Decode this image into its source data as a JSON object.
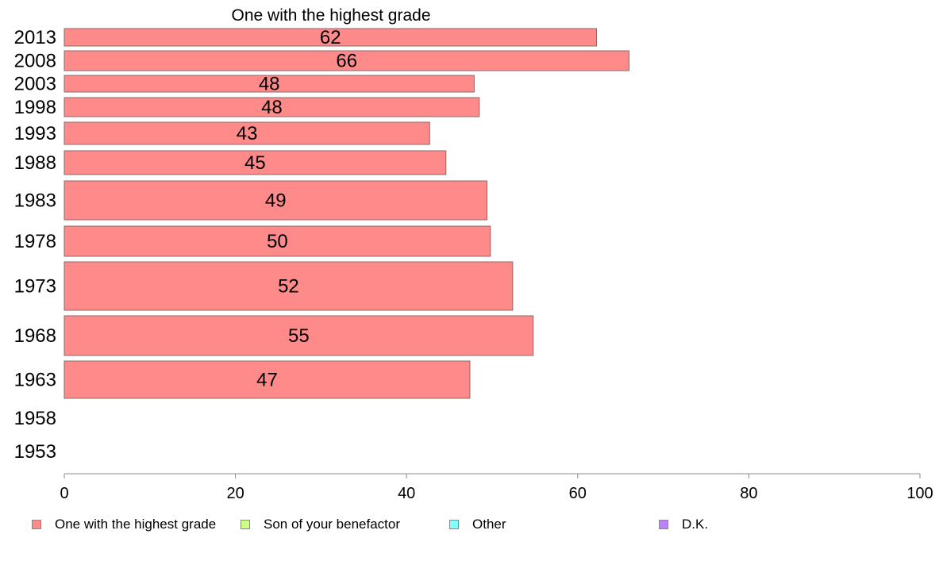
{
  "chart_data": {
    "type": "bar",
    "orientation": "horizontal",
    "title": "One with the highest grade",
    "categories": [
      "2013",
      "2008",
      "2003",
      "1998",
      "1993",
      "1988",
      "1983",
      "1978",
      "1973",
      "1968",
      "1963",
      "1958",
      "1953"
    ],
    "series": [
      {
        "name": "One with the highest grade",
        "color": "#ff8a8a",
        "values": [
          62.2,
          66.0,
          47.9,
          48.5,
          42.7,
          44.6,
          49.4,
          49.8,
          52.4,
          54.8,
          47.4,
          null,
          null
        ],
        "labels": [
          "62",
          "66",
          "48",
          "48",
          "43",
          "45",
          "49",
          "50",
          "52",
          "55",
          "47",
          "",
          ""
        ]
      }
    ],
    "xlim": [
      0,
      100
    ],
    "xticks": [
      "0",
      "20",
      "40",
      "60",
      "80",
      "100"
    ],
    "grid": false,
    "legend_position": "bottom",
    "legend": [
      {
        "label": "One with the highest grade",
        "color": "#ff8a8a"
      },
      {
        "label": "Son of your benefactor",
        "color": "#ccff80"
      },
      {
        "label": "Other",
        "color": "#80ffff"
      },
      {
        "label": "D.K.",
        "color": "#bf80ff"
      }
    ]
  }
}
